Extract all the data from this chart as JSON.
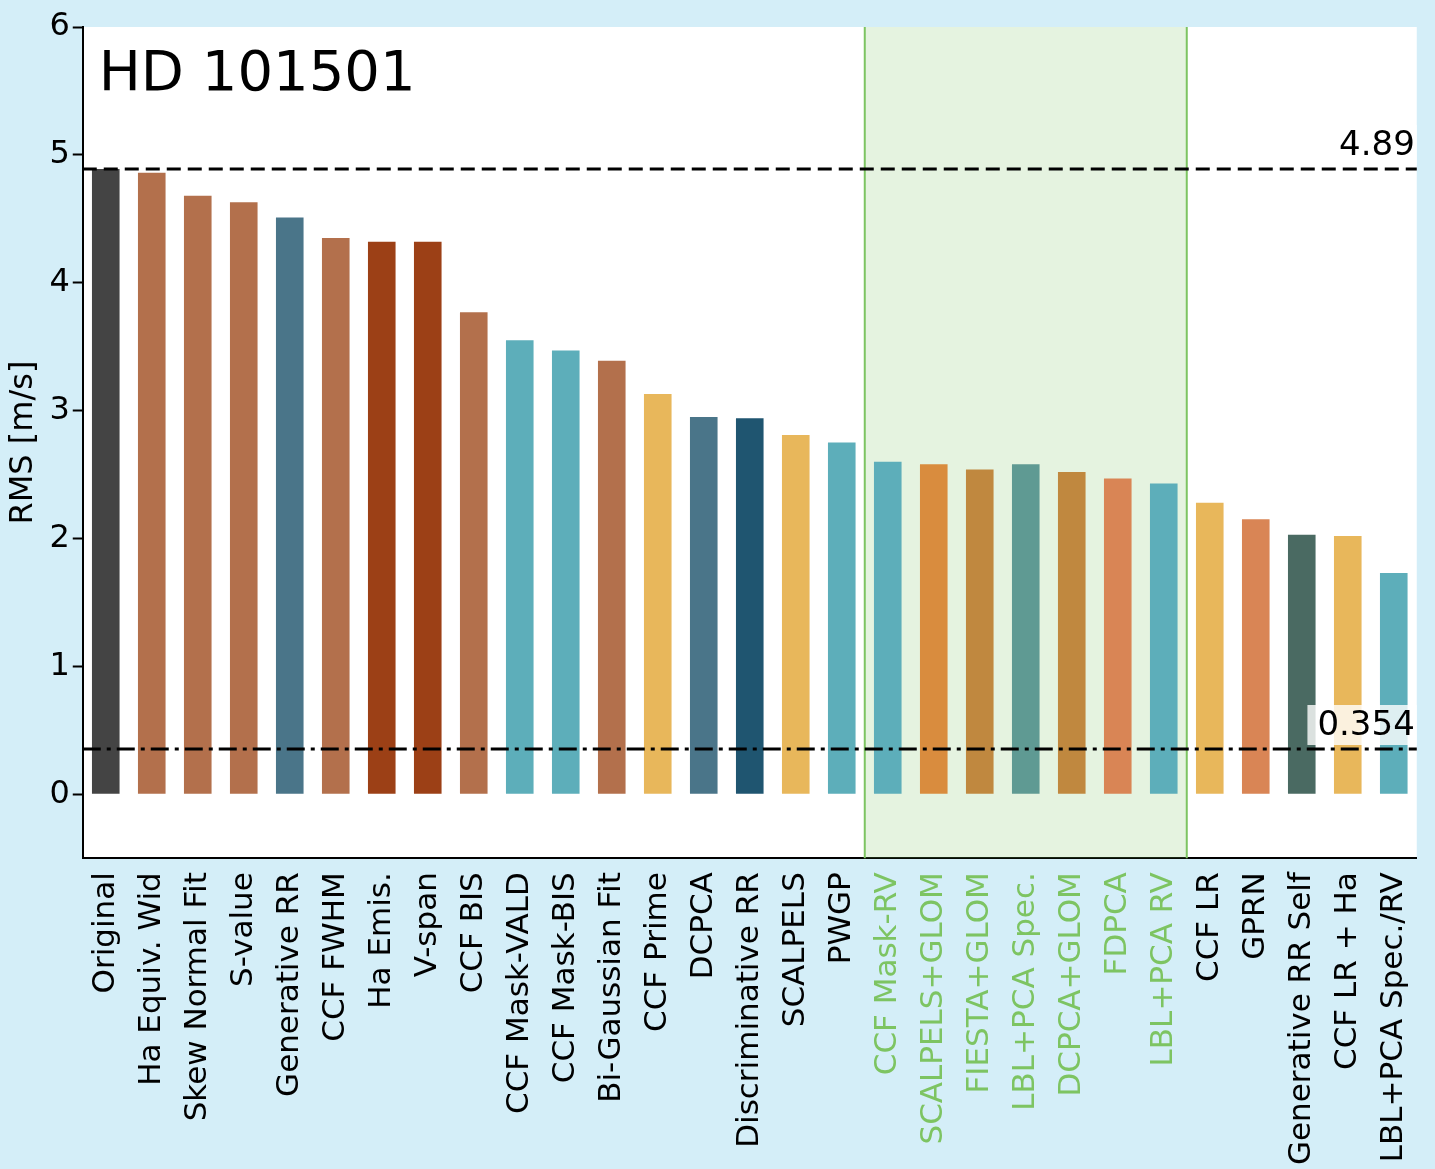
{
  "chart_data": {
    "type": "bar",
    "title": "HD 101501",
    "ylabel": "RMS [m/s]",
    "categories": [
      "Original",
      "Ha Equiv. Wid",
      "Skew Normal Fit",
      "S-value",
      "Generative RR",
      "CCF FWHM",
      "Ha Emis.",
      "V-span",
      "CCF BIS",
      "CCF Mask-VALD",
      "CCF Mask-BIS",
      "Bi-Gaussian Fit",
      "CCF Prime",
      "DCPCA",
      "Discriminative RR",
      "SCALPELS",
      "PWGP",
      "CCF Mask-RV",
      "SCALPELS+GLOM",
      "FIESTA+GLOM",
      "LBL+PCA Spec.",
      "DCPCA+GLOM",
      "FDPCA",
      "LBL+PCA RV",
      "CCF LR",
      "GPRN",
      "Generative RR Self",
      "CCF LR + Ha",
      "LBL+PCA Spec./RV"
    ],
    "values": [
      4.89,
      4.86,
      4.68,
      4.63,
      4.51,
      4.35,
      4.32,
      4.32,
      3.77,
      3.55,
      3.47,
      3.39,
      3.13,
      2.95,
      2.94,
      2.81,
      2.75,
      2.6,
      2.58,
      2.54,
      2.58,
      2.52,
      2.47,
      2.43,
      2.28,
      2.15,
      2.03,
      2.02,
      1.73
    ],
    "colors": [
      "#444444",
      "#b3704c",
      "#b3704c",
      "#b3704c",
      "#4a7589",
      "#b3704c",
      "#9c4016",
      "#9c4016",
      "#b3704c",
      "#5daeba",
      "#5daeba",
      "#b3704c",
      "#e8b75b",
      "#4a7589",
      "#1f5570",
      "#e8b75b",
      "#5daeba",
      "#5daeba",
      "#d98c3e",
      "#c0883f",
      "#5f9a93",
      "#c0883f",
      "#d98555",
      "#5daeba",
      "#e8b75b",
      "#d98555",
      "#4a6a62",
      "#e8b75b",
      "#5daeba"
    ],
    "ylim": [
      -0.5,
      6
    ],
    "yticks": [
      0,
      1,
      2,
      3,
      4,
      5,
      6
    ],
    "grid": false,
    "legend": false,
    "ref_lines": [
      {
        "axis": "y",
        "value": 4.89,
        "label": "4.89",
        "color": "#000000",
        "line_style": "dashed"
      },
      {
        "axis": "y",
        "value": 0.354,
        "label": "0.354",
        "color": "#000000",
        "line_style": "dashdot"
      }
    ],
    "bands": [
      {
        "axis": "x",
        "from": "CCF Mask-RV",
        "to": "LBL+PCA RV",
        "color": "#7dc462"
      }
    ]
  }
}
